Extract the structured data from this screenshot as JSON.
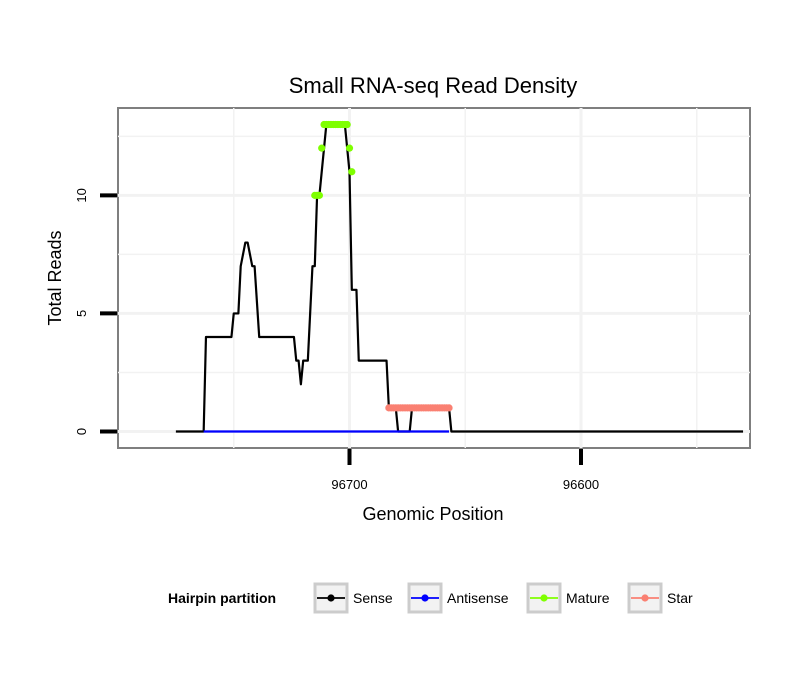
{
  "chart_data": {
    "type": "line",
    "title": "Small RNA-seq Read Density",
    "xlabel": "Genomic Position",
    "ylabel": "Total Reads",
    "x_reversed": true,
    "xlim": [
      96527,
      96800
    ],
    "ylim": [
      -0.7,
      13.7
    ],
    "xticks": [
      96700,
      96600
    ],
    "xtick_labels": [
      "96700",
      "96600"
    ],
    "yticks": [
      0,
      5,
      10
    ],
    "ytick_labels": [
      "0",
      "5",
      "10"
    ],
    "grid": true,
    "legend": {
      "title": "Hairpin partition",
      "position": "bottom",
      "entries": [
        {
          "name": "Sense",
          "color": "#000000"
        },
        {
          "name": "Antisense",
          "color": "#0000ff"
        },
        {
          "name": "Mature",
          "color": "#7fff00"
        },
        {
          "name": "Star",
          "color": "#fa8072"
        }
      ]
    },
    "series": [
      {
        "name": "Sense",
        "color": "#000000",
        "kind": "line",
        "x": [
          96775,
          96763,
          96762,
          96751,
          96750,
          96748,
          96747,
          96745,
          96744,
          96742,
          96741,
          96739,
          96738,
          96737,
          96736,
          96724,
          96723,
          96722,
          96721,
          96720,
          96719,
          96718,
          96716,
          96715,
          96714,
          96713,
          96711,
          96710,
          96709,
          96708,
          96706,
          96705,
          96704,
          96703,
          96702,
          96701,
          96700,
          96699,
          96698,
          96697,
          96696,
          96694,
          96693,
          96684,
          96683,
          96680,
          96679,
          96674,
          96673,
          96657,
          96656,
          96530
        ],
        "y": [
          0,
          0,
          4,
          4,
          5,
          5,
          7,
          8,
          8,
          7,
          7,
          4,
          4,
          4,
          4,
          4,
          3,
          3,
          2,
          3,
          3,
          3,
          7,
          7,
          10,
          10,
          12,
          13,
          13,
          13,
          13,
          13,
          13,
          13,
          13,
          12,
          11,
          6,
          6,
          6,
          3,
          3,
          3,
          3,
          1,
          1,
          0,
          0,
          1,
          1,
          0,
          0
        ]
      },
      {
        "name": "Antisense",
        "color": "#0000ff",
        "kind": "line",
        "x": [
          96763,
          96657
        ],
        "y": [
          0,
          0
        ]
      },
      {
        "name": "Mature",
        "color": "#7fff00",
        "kind": "points",
        "x": [
          96715,
          96714,
          96713,
          96712,
          96711,
          96710,
          96709,
          96708,
          96707,
          96706,
          96705,
          96704,
          96703,
          96702,
          96701,
          96700,
          96699
        ],
        "y": [
          10,
          10,
          10,
          12,
          13,
          13,
          13,
          13,
          13,
          13,
          13,
          13,
          13,
          13,
          13,
          12,
          11
        ]
      },
      {
        "name": "Star",
        "color": "#fa8072",
        "kind": "points",
        "x": [
          96683,
          96682,
          96681,
          96680,
          96679,
          96678,
          96677,
          96676,
          96675,
          96674,
          96673,
          96672,
          96671,
          96670,
          96669,
          96668,
          96667,
          96666,
          96665,
          96664,
          96663,
          96662,
          96661,
          96660,
          96659,
          96658,
          96657
        ],
        "y": [
          1,
          1,
          1,
          1,
          1,
          1,
          1,
          1,
          1,
          1,
          1,
          1,
          1,
          1,
          1,
          1,
          1,
          1,
          1,
          1,
          1,
          1,
          1,
          1,
          1,
          1,
          1
        ]
      }
    ]
  }
}
